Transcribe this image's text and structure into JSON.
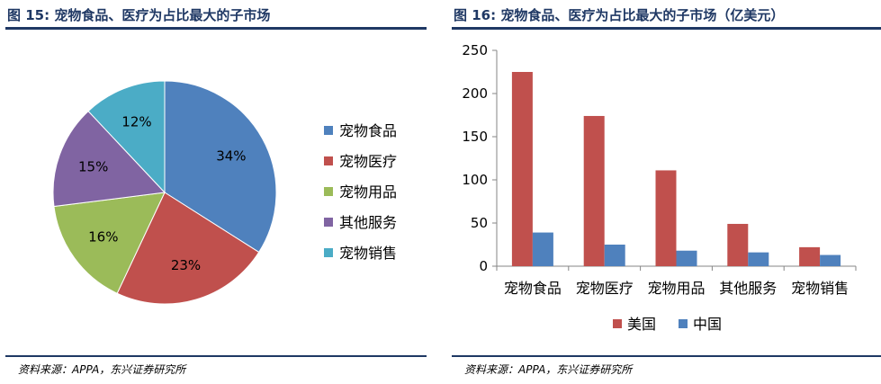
{
  "left": {
    "title": "图 15: 宠物食品、医疗为占比最大的子市场",
    "source": "资料来源：APPA，东兴证券研究所"
  },
  "right": {
    "title": "图 16: 宠物食品、医疗为占比最大的子市场（亿美元）",
    "source": "资料来源：APPA，东兴证券研究所"
  },
  "chart_data": [
    {
      "type": "pie",
      "title": "图 15: 宠物食品、医疗为占比最大的子市场",
      "labels": [
        "宠物食品",
        "宠物医疗",
        "宠物用品",
        "其他服务",
        "宠物销售"
      ],
      "values": [
        34,
        23,
        16,
        15,
        12
      ],
      "value_labels": [
        "34%",
        "23%",
        "16%",
        "15%",
        "12%"
      ],
      "colors": [
        "#4f81bd",
        "#c0504d",
        "#9bbb59",
        "#8064a2",
        "#4bacc6"
      ],
      "legend": "right"
    },
    {
      "type": "bar",
      "title": "图 16: 宠物食品、医疗为占比最大的子市场（亿美元）",
      "categories": [
        "宠物食品",
        "宠物医疗",
        "宠物用品",
        "其他服务",
        "宠物销售"
      ],
      "series": [
        {
          "name": "美国",
          "values": [
            225,
            174,
            111,
            49,
            22
          ],
          "color": "#c0504d"
        },
        {
          "name": "中国",
          "values": [
            39,
            25,
            18,
            16,
            13
          ],
          "color": "#4f81bd"
        }
      ],
      "ylim": [
        0,
        250
      ],
      "yticks": [
        "0",
        "50",
        "100",
        "150",
        "200",
        "250"
      ],
      "legend": "bottom",
      "grid": false
    }
  ]
}
